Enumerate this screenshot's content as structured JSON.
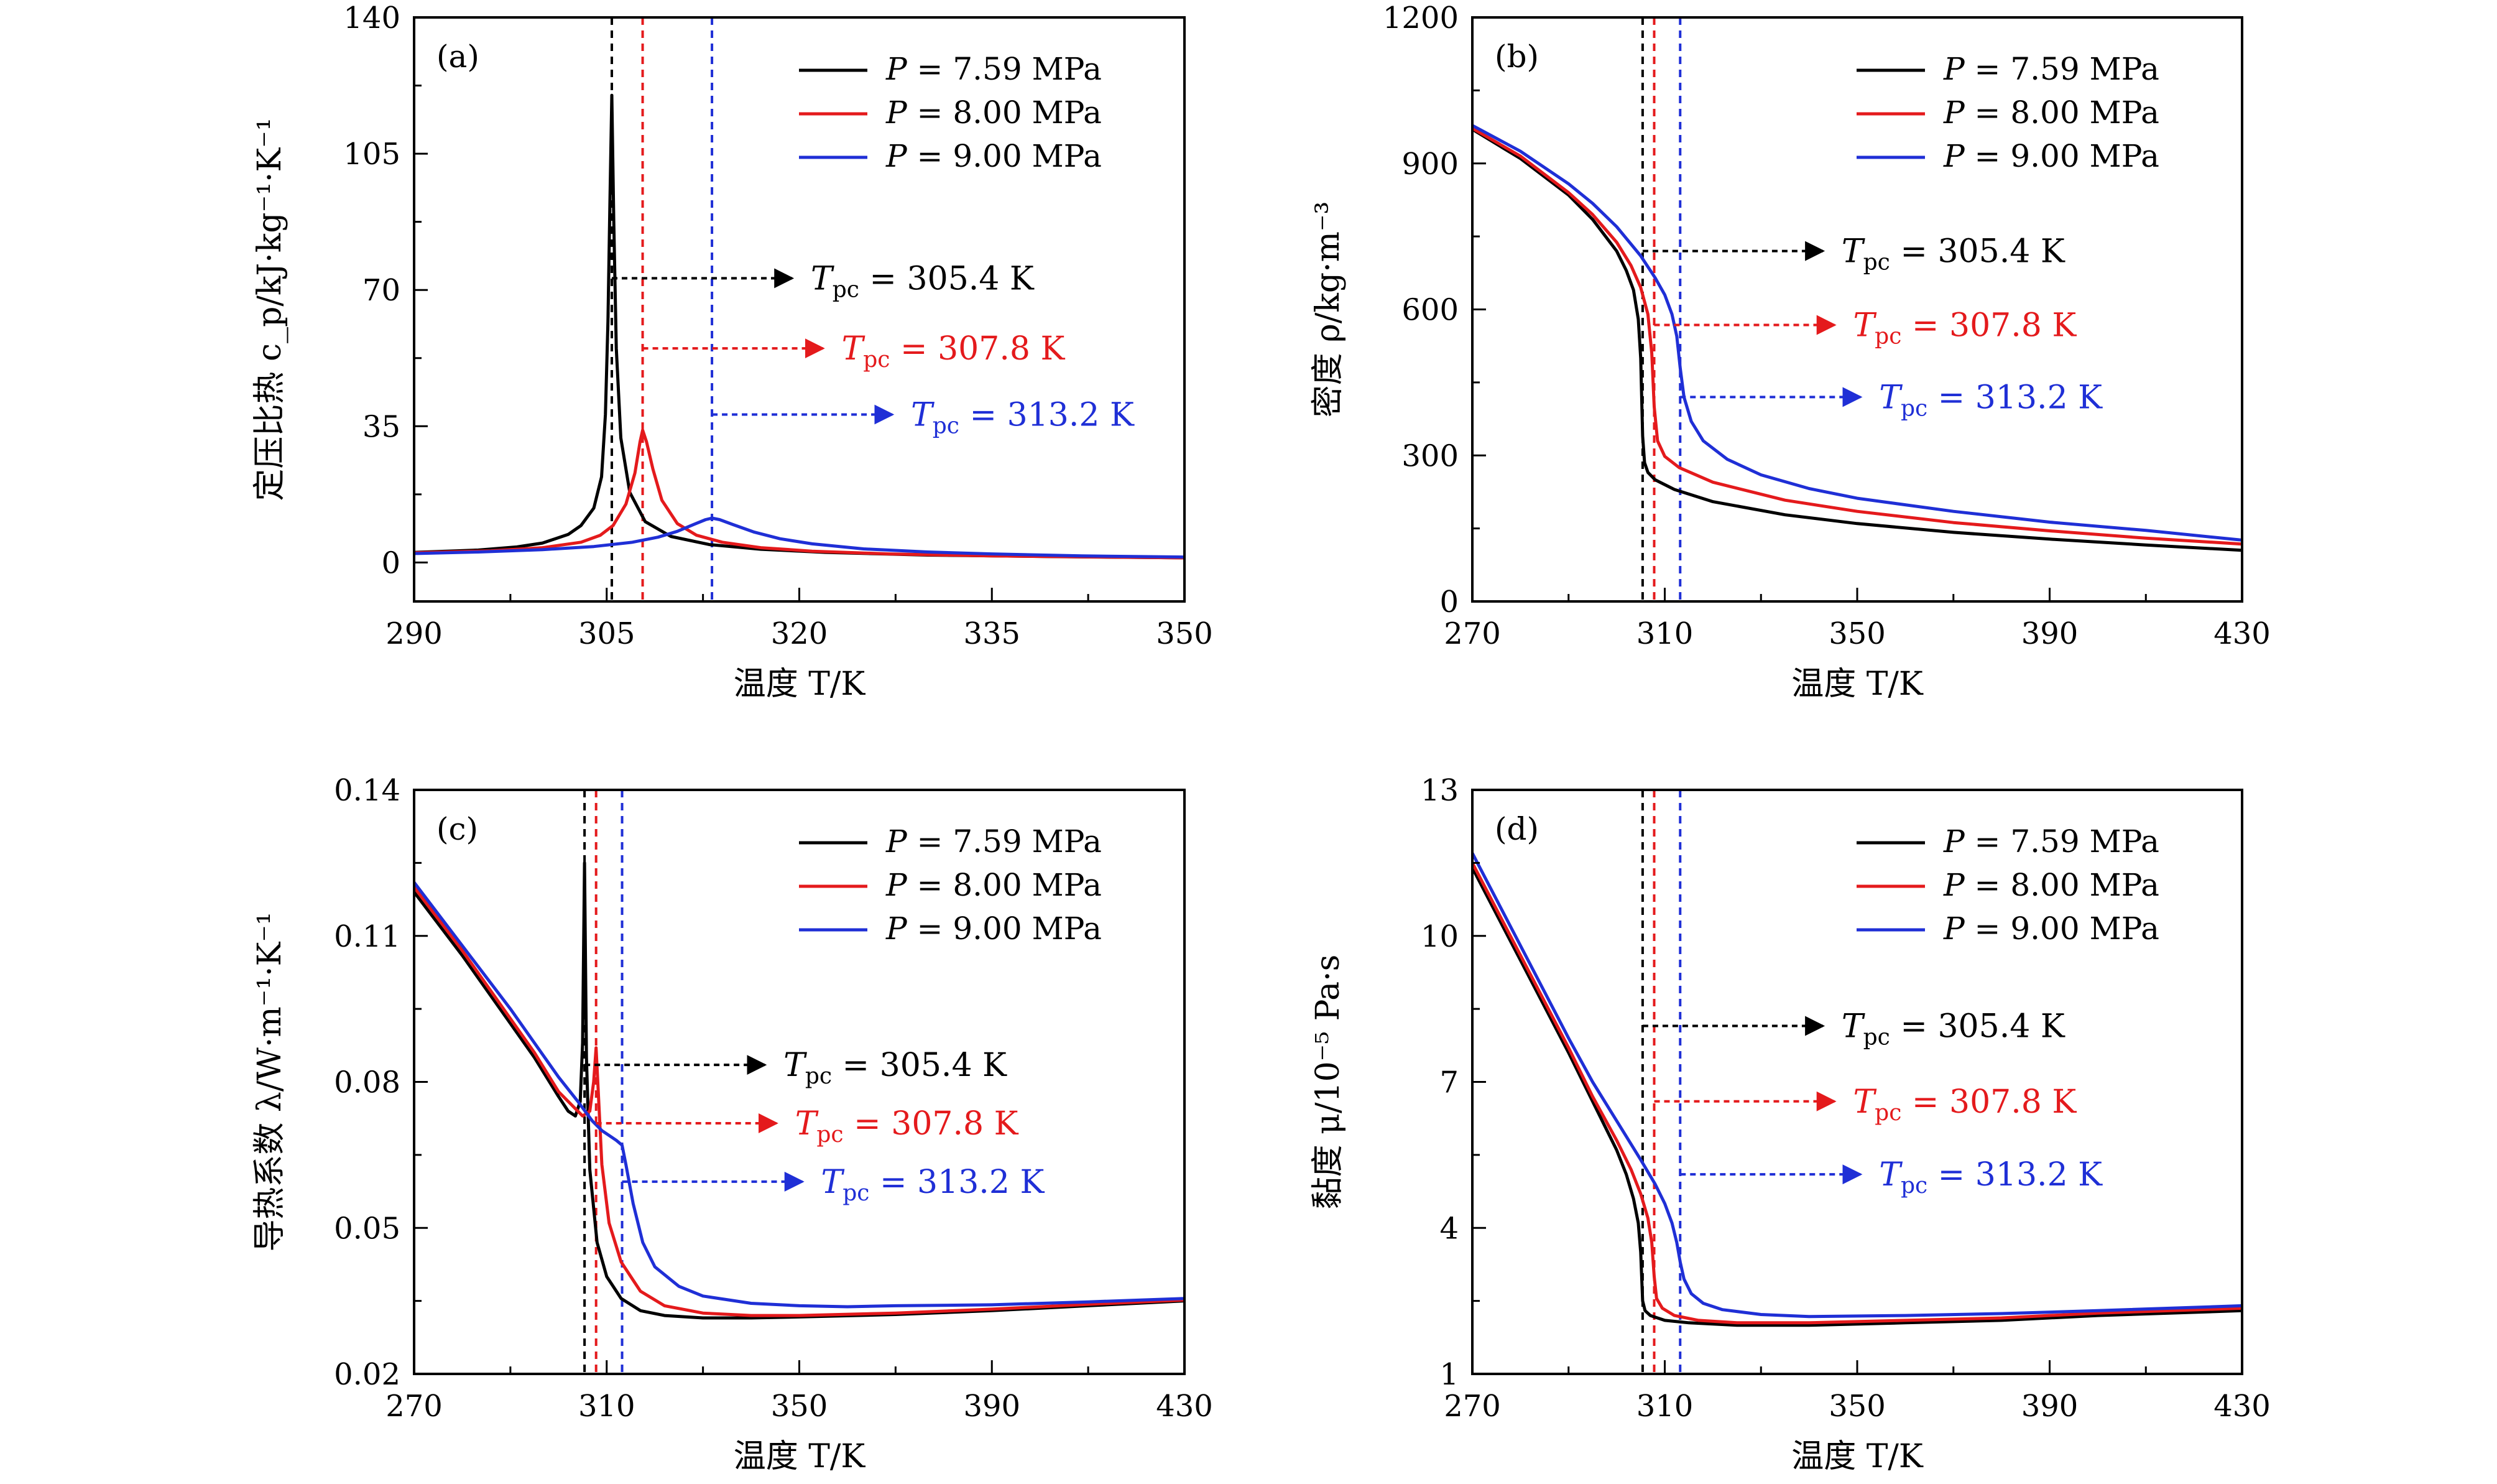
{
  "colors": {
    "black": "#000000",
    "red": "#e41a1c",
    "blue": "#1f2fd6"
  },
  "chart_data": [
    {
      "type": "line",
      "panel": "(a)",
      "xlabel": "温度 T/K",
      "ylabel": "定压比热 c_p/kJ·kg⁻¹·K⁻¹",
      "xlim": [
        290,
        350
      ],
      "ylim": [
        -10,
        140
      ],
      "xticks": [
        290,
        305,
        320,
        335,
        350
      ],
      "yticks": [
        0,
        35,
        70,
        105,
        140
      ],
      "legend_position": "top-right",
      "series": [
        {
          "name": "P = 7.59 MPa",
          "color": "#000000",
          "x": [
            290,
            295,
            298,
            300,
            302,
            303,
            304,
            304.6,
            304.9,
            305.1,
            305.25,
            305.4,
            305.55,
            305.75,
            306.1,
            306.8,
            308,
            310,
            313,
            317,
            322,
            330,
            340,
            350
          ],
          "y": [
            2.6,
            3.2,
            4.0,
            5.0,
            7.2,
            9.5,
            14,
            22,
            38,
            62,
            92,
            120,
            88,
            55,
            32,
            18,
            10.5,
            6.7,
            4.6,
            3.4,
            2.6,
            1.9,
            1.5,
            1.2
          ]
        },
        {
          "name": "P = 8.00 MPa",
          "color": "#e41a1c",
          "x": [
            290,
            296,
            300,
            303,
            304.5,
            305.5,
            306.5,
            307.2,
            307.6,
            307.8,
            308.1,
            308.6,
            309.3,
            310.5,
            312,
            314,
            317,
            321,
            327,
            335,
            350
          ],
          "y": [
            2.5,
            3.0,
            3.8,
            5.2,
            7.0,
            9.5,
            15,
            23,
            31,
            34,
            31,
            24,
            16,
            10,
            7.0,
            5.2,
            3.8,
            2.9,
            2.2,
            1.7,
            1.2
          ]
        },
        {
          "name": "P = 9.00 MPa",
          "color": "#1f2fd6",
          "x": [
            290,
            295,
            300,
            304,
            307,
            309,
            310.5,
            311.8,
            312.7,
            313.2,
            313.8,
            314.8,
            316.5,
            318.5,
            321,
            325,
            330,
            335,
            342,
            350
          ],
          "y": [
            2.3,
            2.7,
            3.3,
            4.1,
            5.2,
            6.5,
            8.0,
            9.8,
            11.0,
            11.4,
            11.0,
            9.8,
            7.8,
            6.1,
            4.8,
            3.5,
            2.7,
            2.2,
            1.7,
            1.4
          ]
        }
      ],
      "markers": [
        {
          "x": 305.4,
          "color": "#000000",
          "label": "T_pc = 305.4 K",
          "arrow_y": 73
        },
        {
          "x": 307.8,
          "color": "#e41a1c",
          "label": "T_pc = 307.8 K",
          "arrow_y": 55
        },
        {
          "x": 313.2,
          "color": "#1f2fd6",
          "label": "T_pc = 313.2 K",
          "arrow_y": 38
        }
      ]
    },
    {
      "type": "line",
      "panel": "(b)",
      "xlabel": "温度 T/K",
      "ylabel": "密度 ρ/kg·m⁻³",
      "xlim": [
        270,
        430
      ],
      "ylim": [
        0,
        1200
      ],
      "xticks": [
        270,
        310,
        350,
        390,
        430
      ],
      "yticks": [
        0,
        300,
        600,
        900,
        1200
      ],
      "legend_position": "top-right",
      "series": [
        {
          "name": "P = 7.59 MPa",
          "color": "#000000",
          "x": [
            270,
            280,
            290,
            295,
            300,
            302,
            303.5,
            304.5,
            305,
            305.4,
            305.8,
            306.5,
            308,
            312,
            320,
            335,
            350,
            370,
            390,
            410,
            430
          ],
          "y": [
            970,
            910,
            835,
            785,
            720,
            680,
            640,
            580,
            500,
            340,
            285,
            265,
            250,
            230,
            205,
            178,
            160,
            142,
            128,
            116,
            105
          ]
        },
        {
          "name": "P = 8.00 MPa",
          "color": "#e41a1c",
          "x": [
            270,
            280,
            290,
            295,
            300,
            303,
            305,
            306.5,
            307.3,
            307.8,
            308.5,
            310,
            313,
            320,
            335,
            350,
            370,
            390,
            410,
            430
          ],
          "y": [
            972,
            915,
            840,
            795,
            738,
            690,
            645,
            590,
            510,
            400,
            330,
            298,
            275,
            245,
            208,
            185,
            162,
            145,
            130,
            118
          ]
        },
        {
          "name": "P = 9.00 MPa",
          "color": "#1f2fd6",
          "x": [
            270,
            280,
            290,
            295,
            300,
            305,
            308,
            310,
            311.5,
            312.5,
            313.2,
            314,
            315.5,
            318,
            323,
            330,
            340,
            350,
            370,
            390,
            410,
            430
          ],
          "y": [
            978,
            925,
            858,
            818,
            770,
            710,
            665,
            630,
            590,
            545,
            480,
            420,
            370,
            330,
            292,
            260,
            232,
            212,
            185,
            163,
            146,
            126
          ]
        }
      ],
      "markers": [
        {
          "x": 305.4,
          "color": "#000000",
          "label": "T_pc = 305.4 K",
          "arrow_y": 720
        },
        {
          "x": 307.8,
          "color": "#e41a1c",
          "label": "T_pc = 307.8 K",
          "arrow_y": 568
        },
        {
          "x": 313.2,
          "color": "#1f2fd6",
          "label": "T_pc = 313.2 K",
          "arrow_y": 420
        }
      ]
    },
    {
      "type": "line",
      "panel": "(c)",
      "xlabel": "温度 T/K",
      "ylabel": "导热系数 λ/W·m⁻¹·K⁻¹",
      "xlim": [
        270,
        430
      ],
      "ylim": [
        0.02,
        0.14
      ],
      "xticks": [
        270,
        310,
        350,
        390,
        430
      ],
      "yticks": [
        0.02,
        0.05,
        0.08,
        0.11,
        0.14
      ],
      "ytick_labels": [
        "0.02",
        "0.05",
        "0.08",
        "0.11",
        "0.14"
      ],
      "legend_position": "top-right",
      "series": [
        {
          "name": "P = 7.59 MPa",
          "color": "#000000",
          "x": [
            270,
            280,
            290,
            295,
            300,
            302,
            303.5,
            304.5,
            305,
            305.4,
            305.8,
            306.5,
            308,
            310,
            313,
            317,
            322,
            330,
            340,
            350,
            370,
            390,
            410,
            430
          ],
          "y": [
            0.119,
            0.106,
            0.092,
            0.085,
            0.077,
            0.074,
            0.073,
            0.076,
            0.088,
            0.125,
            0.085,
            0.062,
            0.047,
            0.04,
            0.0355,
            0.033,
            0.032,
            0.0315,
            0.0315,
            0.0317,
            0.0322,
            0.033,
            0.034,
            0.035
          ]
        },
        {
          "name": "P = 8.00 MPa",
          "color": "#e41a1c",
          "x": [
            270,
            280,
            290,
            295,
            300,
            303,
            305,
            306.5,
            307.3,
            307.8,
            308.3,
            309,
            310.5,
            313,
            317,
            322,
            330,
            340,
            350,
            370,
            390,
            410,
            430
          ],
          "y": [
            0.12,
            0.107,
            0.093,
            0.086,
            0.078,
            0.075,
            0.073,
            0.074,
            0.08,
            0.087,
            0.077,
            0.063,
            0.051,
            0.043,
            0.037,
            0.034,
            0.0325,
            0.032,
            0.032,
            0.0325,
            0.0333,
            0.0343,
            0.0352
          ]
        },
        {
          "name": "P = 9.00 MPa",
          "color": "#1f2fd6",
          "x": [
            270,
            280,
            290,
            295,
            300,
            304,
            307,
            309,
            310.5,
            312,
            313.2,
            314,
            315.5,
            317.5,
            320,
            325,
            330,
            340,
            350,
            360,
            370,
            390,
            410,
            430
          ],
          "y": [
            0.121,
            0.108,
            0.095,
            0.088,
            0.081,
            0.076,
            0.072,
            0.07,
            0.069,
            0.068,
            0.067,
            0.063,
            0.055,
            0.047,
            0.042,
            0.038,
            0.036,
            0.0345,
            0.034,
            0.0338,
            0.034,
            0.0342,
            0.0348,
            0.0355
          ]
        }
      ],
      "markers": [
        {
          "x": 305.4,
          "color": "#000000",
          "label": "T_pc = 305.4 K",
          "arrow_y": 0.0835
        },
        {
          "x": 307.8,
          "color": "#e41a1c",
          "label": "T_pc = 307.8 K",
          "arrow_y": 0.0715
        },
        {
          "x": 313.2,
          "color": "#1f2fd6",
          "label": "T_pc = 313.2 K",
          "arrow_y": 0.0595
        }
      ]
    },
    {
      "type": "line",
      "panel": "(d)",
      "xlabel": "温度 T/K",
      "ylabel": "黏度 μ/10⁻⁵ Pa·s",
      "xlim": [
        270,
        430
      ],
      "ylim": [
        1,
        13
      ],
      "xticks": [
        270,
        310,
        350,
        390,
        430
      ],
      "yticks": [
        1,
        4,
        7,
        10,
        13
      ],
      "legend_position": "top-right",
      "series": [
        {
          "name": "P = 7.59 MPa",
          "color": "#000000",
          "x": [
            270,
            280,
            290,
            295,
            300,
            302,
            303.5,
            304.5,
            305,
            305.4,
            305.9,
            307,
            310,
            315,
            325,
            340,
            360,
            380,
            400,
            430
          ],
          "y": [
            11.4,
            9.5,
            7.6,
            6.6,
            5.6,
            5.1,
            4.6,
            4.1,
            3.5,
            2.5,
            2.3,
            2.2,
            2.1,
            2.05,
            2.0,
            2.0,
            2.05,
            2.1,
            2.2,
            2.3
          ]
        },
        {
          "name": "P = 8.00 MPa",
          "color": "#e41a1c",
          "x": [
            270,
            280,
            290,
            295,
            300,
            303,
            305,
            306.5,
            307.3,
            307.8,
            308.3,
            309.5,
            312,
            317,
            325,
            340,
            360,
            380,
            400,
            430
          ],
          "y": [
            11.5,
            9.6,
            7.7,
            6.7,
            5.8,
            5.2,
            4.7,
            4.2,
            3.7,
            3.0,
            2.55,
            2.35,
            2.2,
            2.1,
            2.05,
            2.05,
            2.1,
            2.15,
            2.25,
            2.35
          ]
        },
        {
          "name": "P = 9.00 MPa",
          "color": "#1f2fd6",
          "x": [
            270,
            280,
            290,
            295,
            300,
            305,
            308,
            310,
            311.5,
            312.5,
            313.2,
            314,
            315.5,
            318,
            322,
            330,
            340,
            360,
            380,
            400,
            430
          ],
          "y": [
            11.7,
            9.8,
            7.9,
            7.0,
            6.2,
            5.4,
            4.9,
            4.5,
            4.1,
            3.7,
            3.3,
            2.95,
            2.65,
            2.45,
            2.32,
            2.22,
            2.18,
            2.2,
            2.24,
            2.3,
            2.4
          ]
        }
      ],
      "markers": [
        {
          "x": 305.4,
          "color": "#000000",
          "label": "T_pc = 305.4 K",
          "arrow_y": 8.15
        },
        {
          "x": 307.8,
          "color": "#e41a1c",
          "label": "T_pc = 307.8 K",
          "arrow_y": 6.6
        },
        {
          "x": 313.2,
          "color": "#1f2fd6",
          "label": "T_pc = 313.2 K",
          "arrow_y": 5.1
        }
      ]
    }
  ]
}
